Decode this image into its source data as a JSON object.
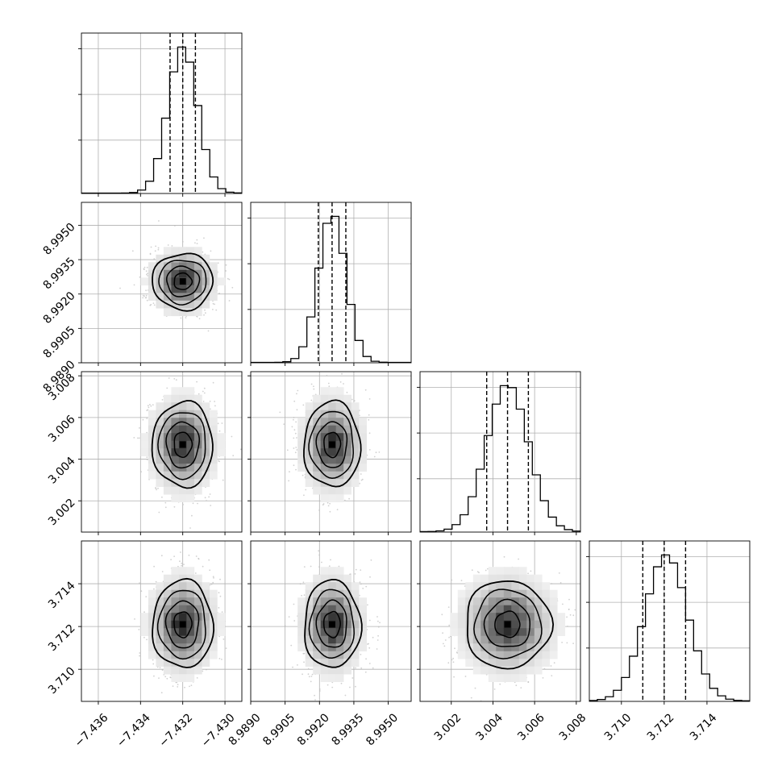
{
  "chart_data": {
    "type": "corner",
    "parameters": [
      {
        "index": 0,
        "range": [
          -7.4368,
          -7.4292
        ],
        "quantiles": [
          -7.4326,
          -7.432,
          -7.4314
        ],
        "mode": -7.432,
        "sigma": 0.0007,
        "ticks": [
          -7.436,
          -7.434,
          -7.432,
          -7.43
        ],
        "tick_labels": [
          "−7.436",
          "−7.434",
          "−7.432",
          "−7.430"
        ]
      },
      {
        "index": 1,
        "range": [
          8.989,
          8.996
        ],
        "quantiles": [
          8.99195,
          8.99255,
          8.99315
        ],
        "mode": 8.99255,
        "sigma": 0.0006,
        "ticks": [
          8.989,
          8.9905,
          8.992,
          8.9935,
          8.995
        ],
        "tick_labels": [
          "8.9890",
          "8.9905",
          "8.9920",
          "8.9935",
          "8.9950"
        ]
      },
      {
        "index": 2,
        "range": [
          3.0005,
          3.0082
        ],
        "quantiles": [
          3.0037,
          3.0047,
          3.0057
        ],
        "mode": 3.0047,
        "sigma": 0.001,
        "ticks": [
          3.002,
          3.004,
          3.006,
          3.008
        ],
        "tick_labels": [
          "3.002",
          "3.004",
          "3.006",
          "3.008"
        ]
      },
      {
        "index": 3,
        "range": [
          3.7085,
          3.716
        ],
        "quantiles": [
          3.711,
          3.712,
          3.713
        ],
        "mode": 3.7121,
        "sigma": 0.001,
        "ticks": [
          3.71,
          3.712,
          3.714
        ],
        "tick_labels": [
          "3.710",
          "3.712",
          "3.714"
        ]
      }
    ],
    "histogram_bins": 20,
    "histogram_style": "step",
    "quantile_line_style": "dashed",
    "contour_levels": 4,
    "grid": true,
    "colors": {
      "hist": "#000000",
      "contour": "#000000",
      "points": "#bdbdbd",
      "density": "#000000",
      "grid": "#b0b0b0"
    }
  }
}
